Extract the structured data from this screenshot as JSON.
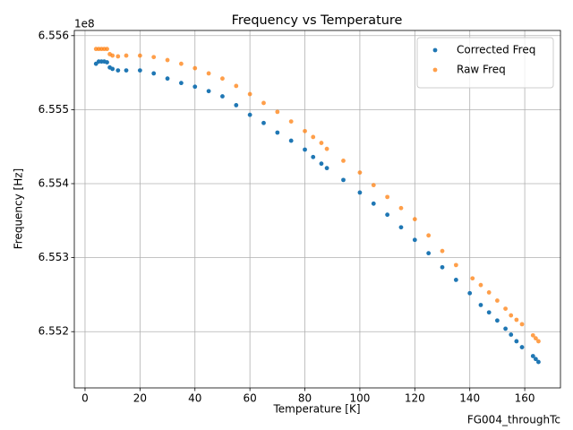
{
  "chart_data": {
    "type": "scatter",
    "title": "Frequency vs Temperature",
    "xlabel": "Temperature [K]",
    "ylabel": "Frequency [Hz]",
    "y_offset_label": "1e8",
    "footer": "FG004_throughTc",
    "xlim": [
      -3.9,
      173
    ],
    "ylim": [
      6.55124,
      6.55607
    ],
    "xticks": [
      0,
      20,
      40,
      60,
      80,
      100,
      120,
      140,
      160
    ],
    "yticks": [
      6.552,
      6.553,
      6.554,
      6.555,
      6.556
    ],
    "grid": true,
    "legend": "upper right",
    "series": [
      {
        "name": "Corrected Freq",
        "color": "#1f77b4",
        "x": [
          4,
          5,
          6,
          7,
          8,
          9,
          10,
          12,
          15,
          20,
          25,
          30,
          35,
          40,
          45,
          50,
          55,
          60,
          65,
          70,
          75,
          80,
          83,
          86,
          88,
          94,
          100,
          105,
          110,
          115,
          120,
          125,
          130,
          135,
          140,
          144,
          147,
          150,
          153,
          155,
          157,
          159,
          163,
          164,
          165
        ],
        "values": [
          6.55562,
          6.55565,
          6.55565,
          6.55565,
          6.55564,
          6.55557,
          6.55555,
          6.55553,
          6.55553,
          6.55553,
          6.55549,
          6.55542,
          6.55536,
          6.55531,
          6.55525,
          6.55518,
          6.55506,
          6.55493,
          6.55482,
          6.55469,
          6.55458,
          6.55446,
          6.55436,
          6.55427,
          6.55421,
          6.55405,
          6.55388,
          6.55373,
          6.55358,
          6.55341,
          6.55324,
          6.55306,
          6.55287,
          6.5527,
          6.55252,
          6.55236,
          6.55226,
          6.55215,
          6.55204,
          6.55196,
          6.55187,
          6.55179,
          6.55167,
          6.55163,
          6.55159
        ]
      },
      {
        "name": "Raw Freq",
        "color": "#ff7f0e",
        "x": [
          4,
          5,
          6,
          7,
          8,
          9,
          10,
          12,
          15,
          20,
          25,
          30,
          35,
          40,
          45,
          50,
          55,
          60,
          65,
          70,
          75,
          80,
          83,
          86,
          88,
          94,
          100,
          105,
          110,
          115,
          120,
          125,
          130,
          135,
          141,
          144,
          147,
          150,
          153,
          155,
          157,
          159,
          163,
          164,
          165
        ],
        "values": [
          6.55582,
          6.55582,
          6.55582,
          6.55582,
          6.55582,
          6.55575,
          6.55573,
          6.55572,
          6.55573,
          6.55573,
          6.55571,
          6.55567,
          6.55562,
          6.55556,
          6.55549,
          6.55542,
          6.55532,
          6.55521,
          6.55509,
          6.55497,
          6.55484,
          6.55471,
          6.55463,
          6.55455,
          6.55447,
          6.55431,
          6.55415,
          6.55398,
          6.55382,
          6.55367,
          6.55352,
          6.5533,
          6.55309,
          6.5529,
          6.55272,
          6.55263,
          6.55253,
          6.55242,
          6.55231,
          6.55222,
          6.55216,
          6.5521,
          6.55195,
          6.55191,
          6.55187
        ]
      }
    ]
  }
}
